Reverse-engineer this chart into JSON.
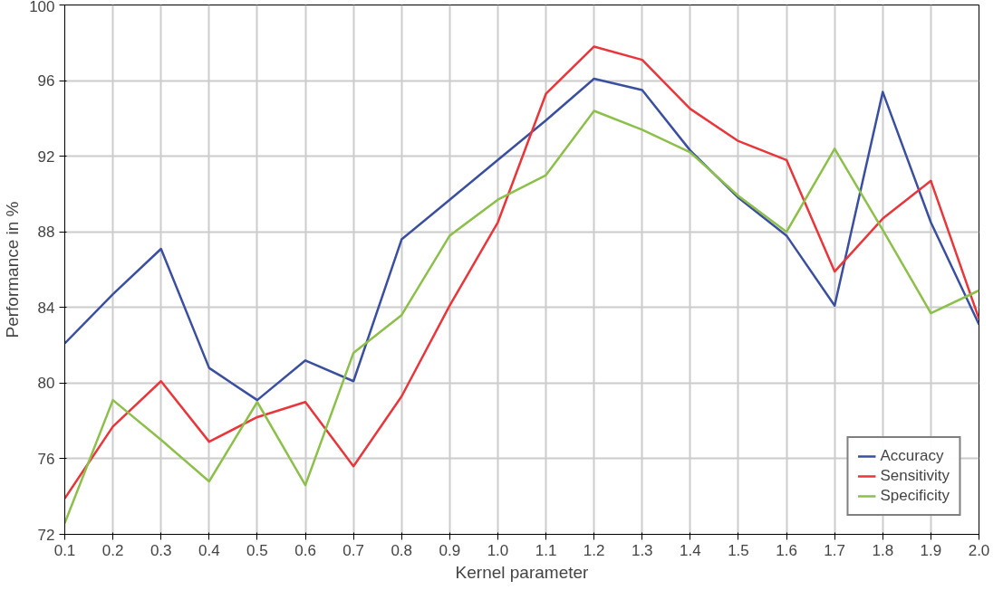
{
  "chart_data": {
    "type": "line",
    "xlabel": "Kernel parameter",
    "ylabel": "Performance in %",
    "x": [
      0.1,
      0.2,
      0.3,
      0.4,
      0.5,
      0.6,
      0.7,
      0.8,
      0.9,
      1.0,
      1.1,
      1.2,
      1.3,
      1.4,
      1.5,
      1.6,
      1.7,
      1.8,
      1.9,
      2.0
    ],
    "series": [
      {
        "name": "Accuracy",
        "color": "#3b4fa0",
        "values": [
          82.1,
          84.7,
          87.1,
          80.8,
          79.1,
          81.2,
          80.1,
          87.6,
          89.7,
          91.8,
          93.9,
          96.1,
          95.5,
          92.3,
          89.8,
          87.8,
          84.1,
          95.4,
          88.5,
          83.1
        ]
      },
      {
        "name": "Sensitivity",
        "color": "#e8363a",
        "values": [
          73.9,
          77.7,
          80.1,
          76.9,
          78.2,
          79.0,
          75.6,
          79.3,
          84.1,
          88.5,
          95.3,
          97.8,
          97.1,
          94.5,
          92.8,
          91.8,
          85.9,
          88.7,
          90.7,
          83.4
        ]
      },
      {
        "name": "Specificity",
        "color": "#8cc04a",
        "values": [
          72.6,
          79.1,
          77.0,
          74.8,
          79.0,
          74.6,
          81.6,
          83.6,
          87.8,
          89.7,
          91.0,
          94.4,
          93.4,
          92.2,
          89.9,
          88.0,
          92.4,
          88.1,
          83.7,
          84.9
        ]
      }
    ],
    "xlim": [
      0.1,
      2.0
    ],
    "xticks": [
      0.1,
      0.2,
      0.3,
      0.4,
      0.5,
      0.6,
      0.7,
      0.8,
      0.9,
      {
        "value": 1.0,
        "label": "1.0"
      },
      1.1,
      1.2,
      1.3,
      1.4,
      1.5,
      1.6,
      1.7,
      1.8,
      1.9,
      {
        "value": 2.0,
        "label": "2.0"
      }
    ],
    "ylim": [
      72,
      100
    ],
    "yticks": [
      72,
      76,
      80,
      84,
      88,
      92,
      96,
      100
    ],
    "grid": true,
    "legend": "bottom right",
    "line_style": "solid"
  }
}
